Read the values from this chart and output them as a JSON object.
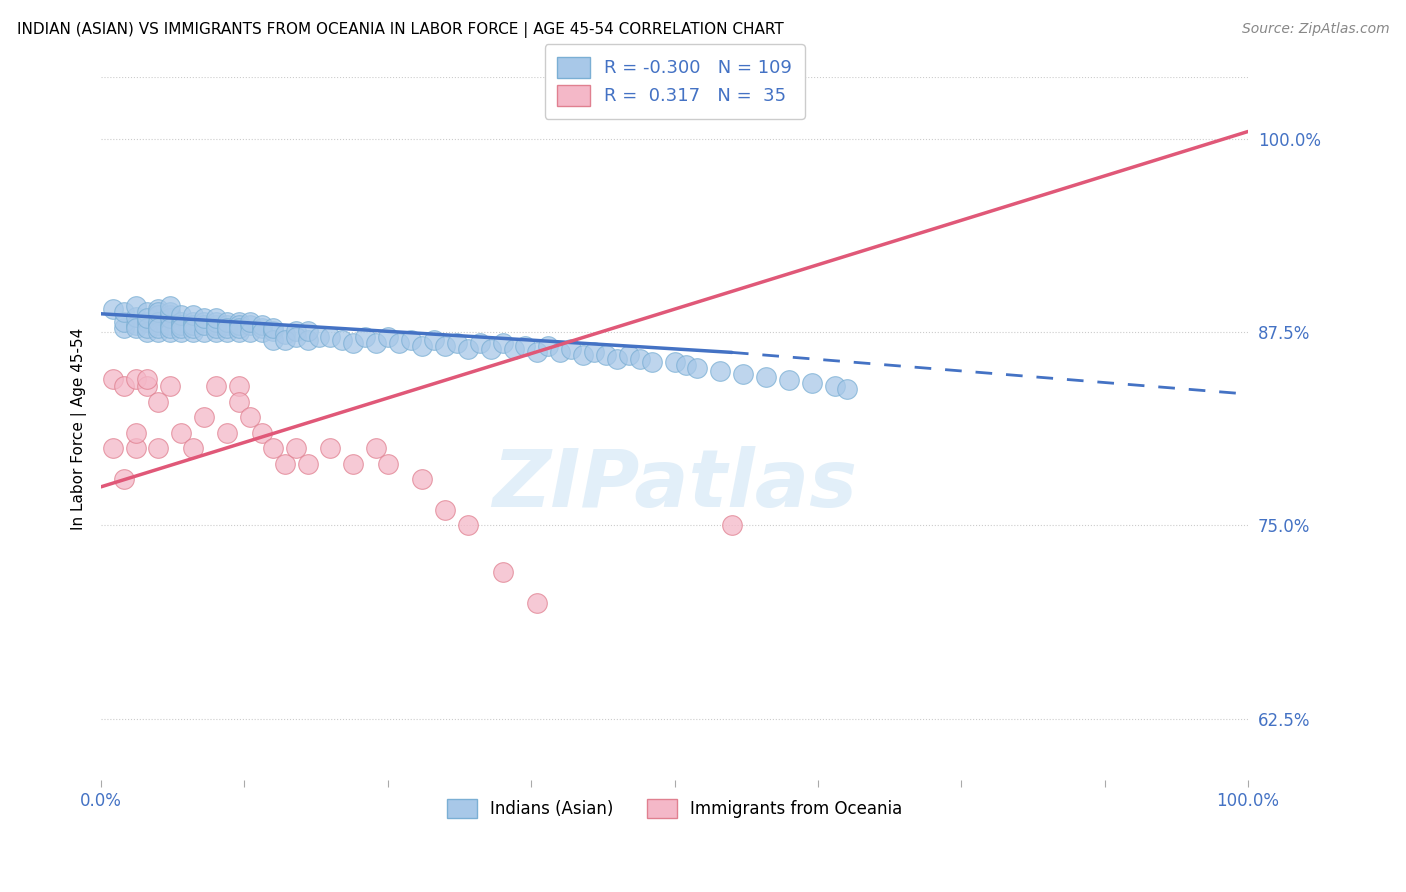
{
  "title": "INDIAN (ASIAN) VS IMMIGRANTS FROM OCEANIA IN LABOR FORCE | AGE 45-54 CORRELATION CHART",
  "source": "Source: ZipAtlas.com",
  "ylabel": "In Labor Force | Age 45-54",
  "xlim": [
    0.0,
    1.0
  ],
  "ylim": [
    0.585,
    1.04
  ],
  "yticks": [
    0.625,
    0.75,
    0.875,
    1.0
  ],
  "ytick_labels": [
    "62.5%",
    "75.0%",
    "87.5%",
    "100.0%"
  ],
  "xticks": [
    0.0,
    0.125,
    0.25,
    0.375,
    0.5,
    0.625,
    0.75,
    0.875,
    1.0
  ],
  "xtick_labels": [
    "0.0%",
    "",
    "",
    "",
    "",
    "",
    "",
    "",
    "100.0%"
  ],
  "blue_color": "#a8c8e8",
  "blue_edge": "#7bafd4",
  "pink_color": "#f4b8c8",
  "pink_edge": "#e08090",
  "trend_blue": "#4472c4",
  "trend_pink": "#e05878",
  "R_blue": -0.3,
  "N_blue": 109,
  "R_pink": 0.317,
  "N_pink": 35,
  "legend_label_blue": "Indians (Asian)",
  "legend_label_pink": "Immigrants from Oceania",
  "watermark": "ZIPatlas",
  "blue_trend_start_x": 0.0,
  "blue_trend_start_y": 0.887,
  "blue_trend_solid_end_x": 0.55,
  "blue_trend_solid_end_y": 0.862,
  "blue_trend_dashed_end_x": 1.0,
  "blue_trend_dashed_end_y": 0.835,
  "pink_trend_start_x": 0.0,
  "pink_trend_start_y": 0.775,
  "pink_trend_end_x": 1.0,
  "pink_trend_end_y": 1.005,
  "title_fontsize": 11,
  "tick_color": "#4472c4",
  "grid_color": "#cccccc",
  "background_color": "#ffffff",
  "blue_scatter_x": [
    0.01,
    0.02,
    0.02,
    0.02,
    0.03,
    0.03,
    0.03,
    0.03,
    0.04,
    0.04,
    0.04,
    0.04,
    0.04,
    0.05,
    0.05,
    0.05,
    0.05,
    0.05,
    0.05,
    0.05,
    0.06,
    0.06,
    0.06,
    0.06,
    0.06,
    0.06,
    0.06,
    0.07,
    0.07,
    0.07,
    0.07,
    0.07,
    0.08,
    0.08,
    0.08,
    0.08,
    0.08,
    0.09,
    0.09,
    0.09,
    0.09,
    0.1,
    0.1,
    0.1,
    0.1,
    0.1,
    0.11,
    0.11,
    0.11,
    0.11,
    0.12,
    0.12,
    0.12,
    0.12,
    0.13,
    0.13,
    0.13,
    0.14,
    0.14,
    0.14,
    0.15,
    0.15,
    0.15,
    0.16,
    0.16,
    0.17,
    0.17,
    0.18,
    0.18,
    0.19,
    0.2,
    0.21,
    0.22,
    0.23,
    0.24,
    0.25,
    0.26,
    0.27,
    0.28,
    0.29,
    0.3,
    0.31,
    0.32,
    0.33,
    0.34,
    0.35,
    0.36,
    0.37,
    0.38,
    0.39,
    0.4,
    0.41,
    0.42,
    0.43,
    0.44,
    0.45,
    0.46,
    0.47,
    0.48,
    0.5,
    0.51,
    0.52,
    0.54,
    0.56,
    0.58,
    0.6,
    0.62,
    0.64,
    0.65
  ],
  "blue_scatter_y": [
    0.89,
    0.878,
    0.882,
    0.888,
    0.88,
    0.885,
    0.878,
    0.892,
    0.882,
    0.875,
    0.888,
    0.878,
    0.884,
    0.89,
    0.88,
    0.886,
    0.875,
    0.882,
    0.888,
    0.878,
    0.886,
    0.88,
    0.875,
    0.884,
    0.888,
    0.878,
    0.892,
    0.882,
    0.875,
    0.88,
    0.886,
    0.878,
    0.882,
    0.875,
    0.88,
    0.886,
    0.878,
    0.882,
    0.875,
    0.88,
    0.884,
    0.88,
    0.875,
    0.882,
    0.878,
    0.884,
    0.88,
    0.875,
    0.882,
    0.878,
    0.882,
    0.875,
    0.88,
    0.878,
    0.88,
    0.875,
    0.882,
    0.878,
    0.88,
    0.875,
    0.876,
    0.87,
    0.878,
    0.874,
    0.87,
    0.876,
    0.872,
    0.87,
    0.876,
    0.872,
    0.872,
    0.87,
    0.868,
    0.872,
    0.868,
    0.872,
    0.868,
    0.87,
    0.866,
    0.87,
    0.866,
    0.868,
    0.864,
    0.868,
    0.864,
    0.868,
    0.864,
    0.866,
    0.862,
    0.866,
    0.862,
    0.864,
    0.86,
    0.862,
    0.86,
    0.858,
    0.86,
    0.858,
    0.856,
    0.856,
    0.854,
    0.852,
    0.85,
    0.848,
    0.846,
    0.844,
    0.842,
    0.84,
    0.838
  ],
  "pink_scatter_x": [
    0.01,
    0.01,
    0.02,
    0.02,
    0.03,
    0.03,
    0.03,
    0.04,
    0.04,
    0.05,
    0.05,
    0.06,
    0.07,
    0.08,
    0.09,
    0.1,
    0.11,
    0.12,
    0.12,
    0.13,
    0.14,
    0.15,
    0.16,
    0.17,
    0.18,
    0.2,
    0.22,
    0.24,
    0.25,
    0.28,
    0.3,
    0.32,
    0.35,
    0.38,
    0.55
  ],
  "pink_scatter_y": [
    0.845,
    0.8,
    0.78,
    0.84,
    0.845,
    0.8,
    0.81,
    0.84,
    0.845,
    0.83,
    0.8,
    0.84,
    0.81,
    0.8,
    0.82,
    0.84,
    0.81,
    0.84,
    0.83,
    0.82,
    0.81,
    0.8,
    0.79,
    0.8,
    0.79,
    0.8,
    0.79,
    0.8,
    0.79,
    0.78,
    0.76,
    0.75,
    0.72,
    0.7,
    0.75
  ]
}
